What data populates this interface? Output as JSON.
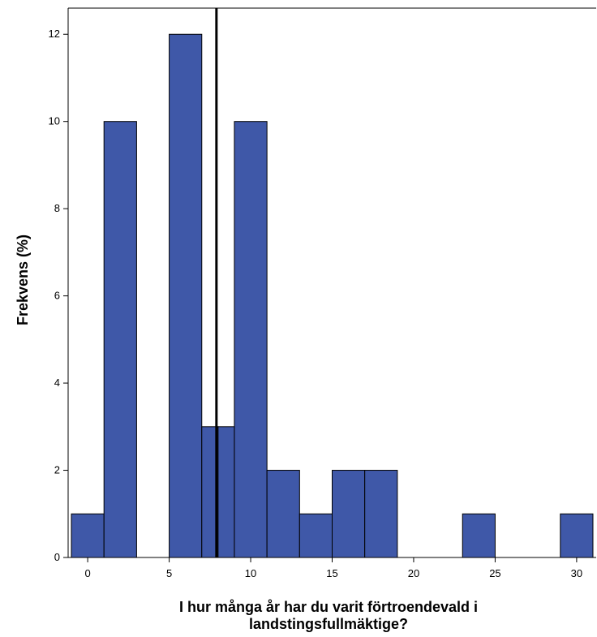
{
  "chart_data": {
    "type": "bar",
    "xlabel_lines": [
      "I hur många år har du varit förtroendevald i",
      "landstingsfullmäktige?"
    ],
    "ylabel": "Frekvens (%)",
    "xlim": [
      -1.2,
      31.2
    ],
    "ylim": [
      0,
      12.6
    ],
    "x_ticks": [
      0,
      5,
      10,
      15,
      20,
      25,
      30
    ],
    "y_ticks": [
      0,
      2,
      4,
      6,
      8,
      10,
      12
    ],
    "bins": [
      {
        "from": -1,
        "to": 1,
        "value": 1
      },
      {
        "from": 1,
        "to": 3,
        "value": 10
      },
      {
        "from": 5,
        "to": 7,
        "value": 12
      },
      {
        "from": 7,
        "to": 8,
        "value": 3
      },
      {
        "from": 8,
        "to": 9,
        "value": 3
      },
      {
        "from": 9,
        "to": 11,
        "value": 10
      },
      {
        "from": 11,
        "to": 13,
        "value": 2
      },
      {
        "from": 13,
        "to": 15,
        "value": 1
      },
      {
        "from": 15,
        "to": 17,
        "value": 2
      },
      {
        "from": 17,
        "to": 19,
        "value": 2
      },
      {
        "from": 23,
        "to": 25,
        "value": 1
      },
      {
        "from": 29,
        "to": 31,
        "value": 1
      }
    ],
    "reference_line_x": 7.9,
    "grid": false,
    "bar_color": "#3F58A8",
    "edge_color": "#000000"
  }
}
